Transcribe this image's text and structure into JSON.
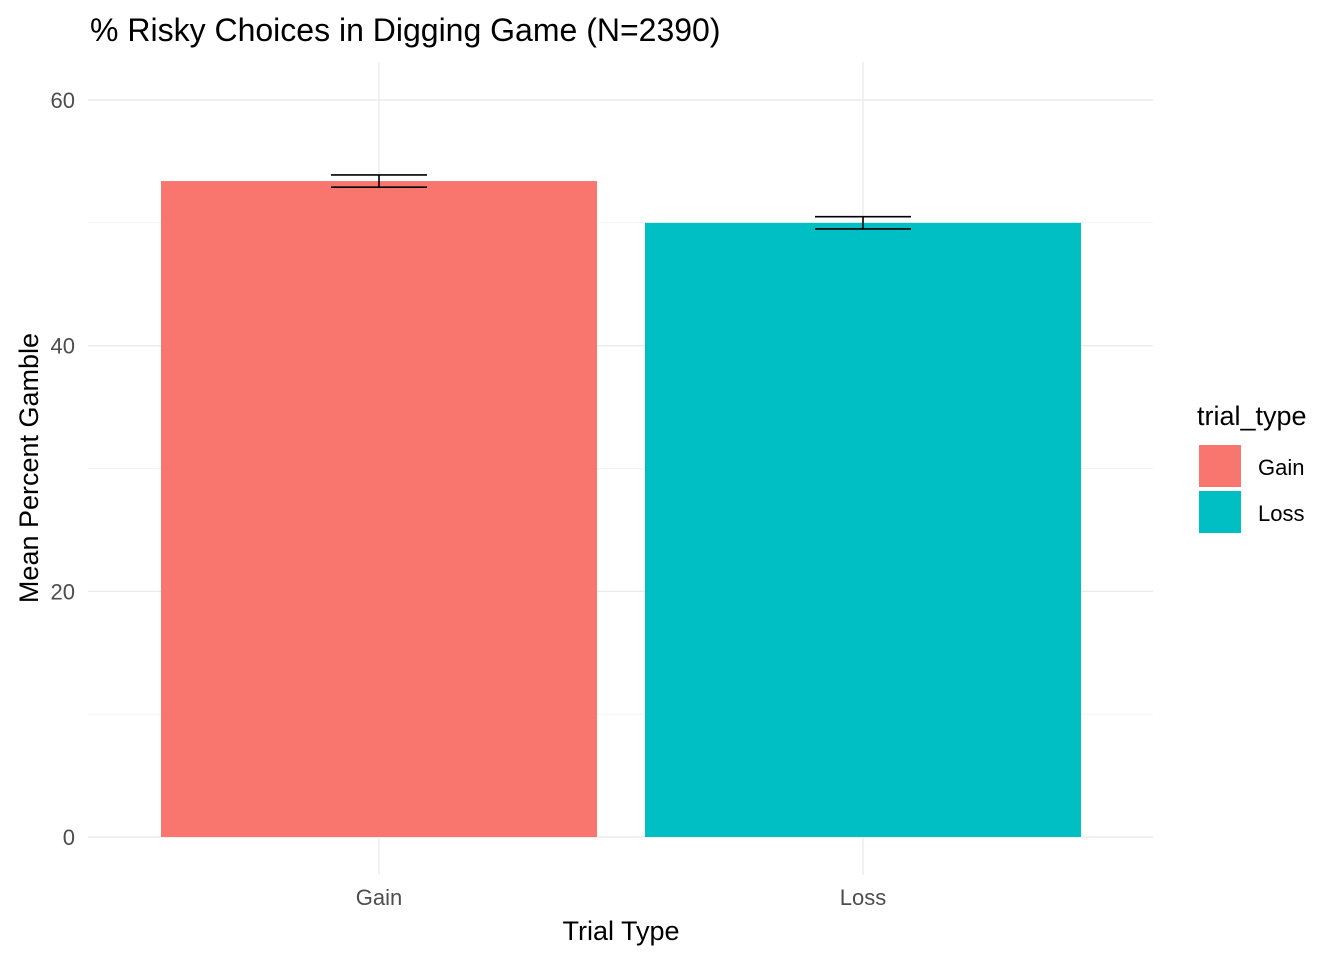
{
  "chart_data": {
    "type": "bar",
    "title": "% Risky Choices in Digging Game (N=2390)",
    "xlabel": "Trial Type",
    "ylabel": "Mean Percent Gamble",
    "categories": [
      "Gain",
      "Loss"
    ],
    "values": [
      53.4,
      50.0
    ],
    "error_bars": [
      {
        "low": 52.9,
        "high": 53.9
      },
      {
        "low": 49.5,
        "high": 50.5
      }
    ],
    "colors": [
      "#F8766D",
      "#00BFC4"
    ],
    "ylim": [
      0,
      60
    ],
    "yticks": [
      0,
      20,
      40,
      60
    ],
    "ytick_labels": [
      "0",
      "20",
      "40",
      "60"
    ],
    "grid": true,
    "legend": {
      "title": "trial_type",
      "position": "right",
      "entries": [
        "Gain",
        "Loss"
      ]
    }
  }
}
